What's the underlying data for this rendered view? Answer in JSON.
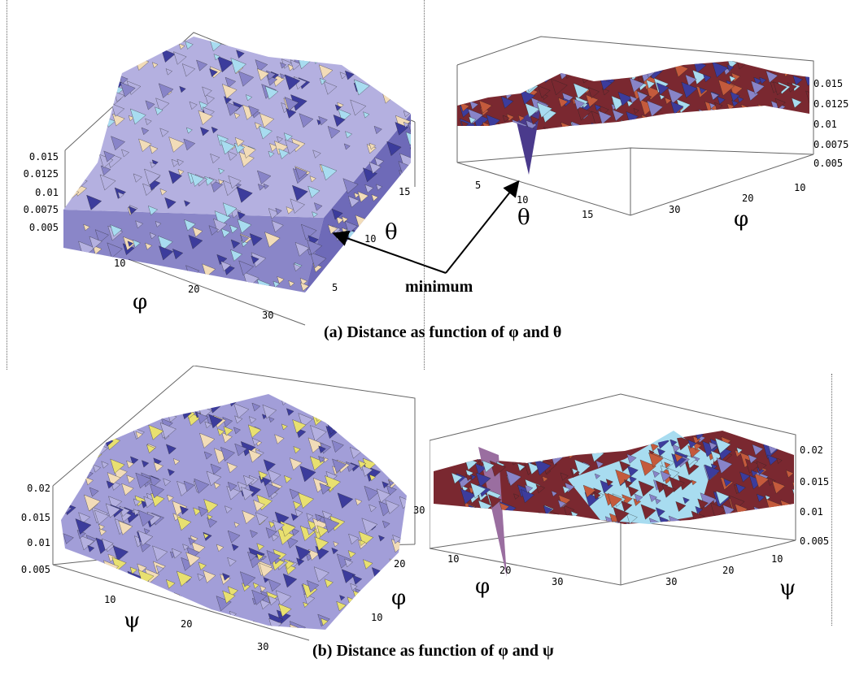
{
  "figure": {
    "panel_a": {
      "caption": "(a) Distance as function of φ and θ",
      "left_plot": {
        "z_ticks": [
          "0.015",
          "0.0125",
          "0.01",
          "0.0075",
          "0.005"
        ],
        "phi_ticks": [
          "10",
          "20",
          "30"
        ],
        "theta_ticks": [
          "5",
          "10",
          "15"
        ],
        "phi_label": "φ",
        "theta_label": "θ"
      },
      "right_plot": {
        "z_ticks": [
          "0.015",
          "0.0125",
          "0.01",
          "0.0075",
          "0.005"
        ],
        "theta_ticks": [
          "5",
          "10",
          "15"
        ],
        "phi_ticks": [
          "10",
          "20",
          "30"
        ],
        "theta_label": "θ",
        "phi_label": "φ"
      },
      "annotation": "minimum"
    },
    "panel_b": {
      "caption": "(b) Distance as function of φ and ψ",
      "left_plot": {
        "z_ticks": [
          "0.02",
          "0.015",
          "0.01",
          "0.005"
        ],
        "psi_ticks": [
          "10",
          "20",
          "30"
        ],
        "phi_ticks": [
          "10",
          "20",
          "30"
        ],
        "psi_label": "ψ",
        "phi_label": "φ"
      },
      "right_plot": {
        "z_ticks": [
          "0.02",
          "0.015",
          "0.01",
          "0.005"
        ],
        "phi_ticks": [
          "10",
          "20",
          "30"
        ],
        "psi_ticks": [
          "10",
          "20",
          "30"
        ],
        "phi_label": "φ",
        "psi_label": "ψ"
      }
    },
    "colors": {
      "surface_light": "#b4b0e0",
      "surface_mid": "#8884c8",
      "surface_dark": "#3c3c9c",
      "surface_cream": "#f2dcb8",
      "surface_red": "#7a2830",
      "surface_cyan": "#a8dcf0"
    }
  }
}
